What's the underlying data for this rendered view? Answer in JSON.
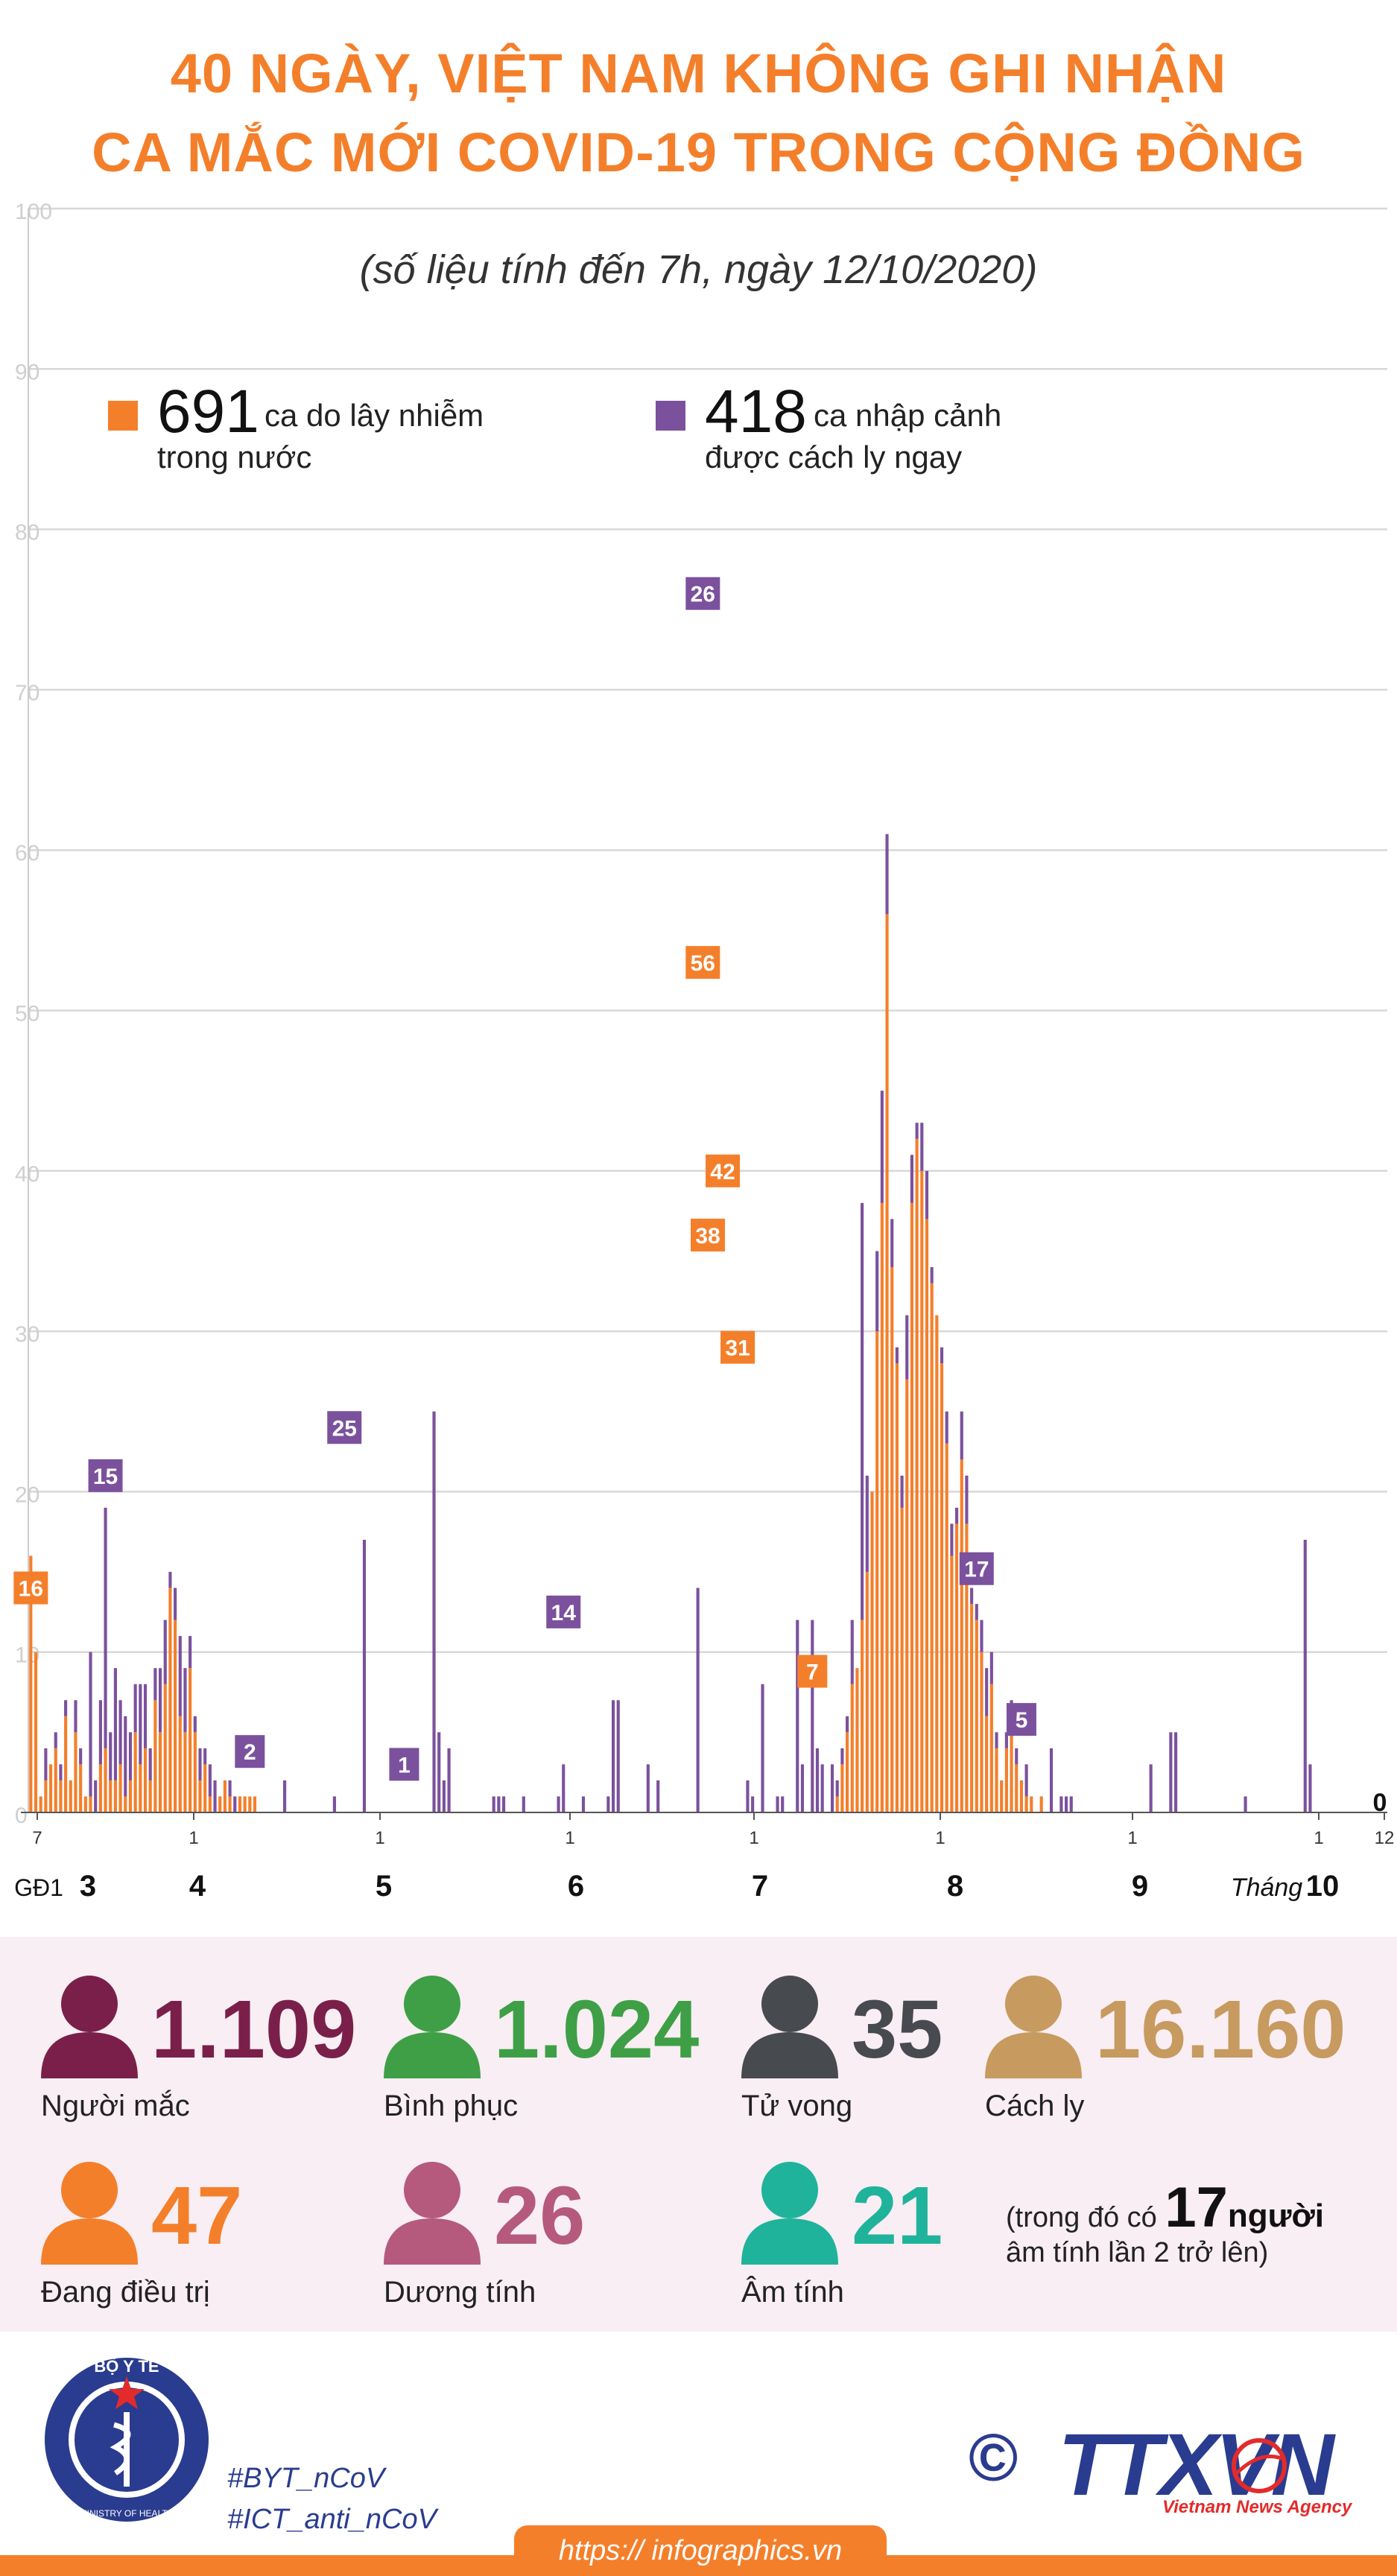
{
  "header": {
    "title_line1": "40 NGÀY, VIỆT NAM KHÔNG GHI NHẬN",
    "title_line2": "CA MẮC MỚI COVID-19 TRONG CỘNG ĐỒNG",
    "subtitle": "(số liệu tính đến 7h, ngày 12/10/2020)"
  },
  "legend": {
    "domestic": {
      "number": "691",
      "text1": "ca do lây nhiễm",
      "text2": "trong nước",
      "color": "#f47f2b"
    },
    "imported": {
      "number": "418",
      "text1": "ca nhập cảnh",
      "text2": "được cách ly ngay",
      "color": "#7b519d"
    }
  },
  "chart_data": {
    "type": "bar",
    "stacked": true,
    "grid": true,
    "ylim": [
      0,
      100
    ],
    "yticks": [
      "0",
      "10",
      "20",
      "30",
      "40",
      "50",
      "60",
      "70",
      "80",
      "90",
      "100"
    ],
    "series": [
      {
        "name": "ca do lây nhiễm trong nước",
        "color": "#f47f2b"
      },
      {
        "name": "ca nhập cảnh được cách ly ngay",
        "color": "#7b519d"
      }
    ],
    "x_day_ticks": [
      "7",
      "1",
      "1",
      "1",
      "1",
      "1",
      "1",
      "1",
      "12"
    ],
    "month_labels": [
      "GĐ1",
      "3",
      "4",
      "5",
      "6",
      "7",
      "8",
      "9",
      "Tháng",
      "10"
    ],
    "callouts": [
      "16",
      "15",
      "2",
      "25",
      "1",
      "14",
      "26",
      "56",
      "38",
      "42",
      "31",
      "7",
      "17",
      "5",
      "0"
    ],
    "domestic": [
      16,
      10,
      1,
      2,
      3,
      4,
      2,
      6,
      2,
      5,
      3,
      1,
      1,
      0,
      3,
      4,
      2,
      2,
      3,
      1,
      2,
      5,
      3,
      4,
      2,
      7,
      5,
      8,
      14,
      12,
      6,
      5,
      9,
      5,
      2,
      3,
      1,
      0,
      1,
      2,
      1,
      0,
      1,
      1,
      1,
      1,
      0,
      0,
      0,
      0,
      0,
      0,
      0,
      0,
      0,
      0,
      0,
      0,
      0,
      0,
      0,
      0,
      0,
      0,
      0,
      0,
      0,
      0,
      0,
      0,
      0,
      0,
      0,
      0,
      0,
      0,
      0,
      0,
      0,
      0,
      0,
      0,
      0,
      0,
      0,
      0,
      0,
      0,
      0,
      0,
      0,
      0,
      0,
      0,
      0,
      0,
      0,
      0,
      0,
      0,
      0,
      0,
      0,
      0,
      0,
      0,
      0,
      0,
      0,
      0,
      0,
      0,
      0,
      0,
      0,
      0,
      0,
      0,
      0,
      0,
      0,
      0,
      0,
      0,
      0,
      0,
      0,
      0,
      0,
      0,
      0,
      0,
      0,
      0,
      0,
      0,
      0,
      0,
      0,
      0,
      0,
      0,
      0,
      0,
      0,
      0,
      0,
      0,
      0,
      0,
      0,
      0,
      0,
      0,
      0,
      0,
      0,
      0,
      0,
      0,
      0,
      0,
      1,
      3,
      5,
      8,
      9,
      12,
      15,
      20,
      30,
      38,
      56,
      34,
      28,
      19,
      27,
      38,
      42,
      40,
      37,
      33,
      31,
      28,
      23,
      16,
      18,
      22,
      18,
      13,
      12,
      10,
      6,
      8,
      4,
      2,
      4,
      6,
      3,
      2,
      1,
      1,
      0,
      1,
      0,
      0,
      0,
      0,
      0,
      0,
      0,
      0,
      0,
      0,
      0,
      0,
      0,
      0,
      0,
      0,
      0,
      0,
      0,
      0,
      0,
      0,
      0,
      0,
      0,
      0,
      0,
      0,
      0,
      0,
      0,
      0,
      0,
      0,
      0,
      0,
      0,
      0,
      0,
      0,
      0,
      0,
      0,
      0,
      0,
      0,
      0,
      0,
      0,
      0,
      0,
      0,
      0,
      0,
      0,
      0,
      0,
      0,
      0,
      0,
      0,
      0,
      0,
      0,
      0,
      0,
      0,
      0,
      0
    ],
    "imported": [
      0,
      0,
      0,
      2,
      0,
      1,
      1,
      1,
      0,
      2,
      1,
      0,
      9,
      2,
      4,
      15,
      3,
      7,
      4,
      5,
      3,
      3,
      5,
      4,
      2,
      2,
      4,
      4,
      1,
      2,
      5,
      4,
      2,
      1,
      2,
      1,
      2,
      2,
      0,
      0,
      1,
      1,
      0,
      0,
      0,
      0,
      0,
      0,
      0,
      0,
      0,
      2,
      0,
      0,
      0,
      0,
      0,
      0,
      0,
      0,
      0,
      1,
      0,
      0,
      0,
      0,
      0,
      17,
      0,
      0,
      0,
      0,
      0,
      0,
      0,
      0,
      0,
      0,
      0,
      0,
      0,
      25,
      5,
      2,
      4,
      0,
      0,
      0,
      0,
      0,
      0,
      0,
      0,
      1,
      1,
      1,
      0,
      0,
      0,
      1,
      0,
      0,
      0,
      0,
      0,
      0,
      1,
      3,
      0,
      0,
      0,
      1,
      0,
      0,
      0,
      0,
      1,
      7,
      7,
      0,
      0,
      0,
      0,
      0,
      3,
      0,
      2,
      0,
      0,
      0,
      0,
      0,
      0,
      0,
      14,
      0,
      0,
      0,
      0,
      0,
      0,
      0,
      0,
      0,
      2,
      1,
      0,
      8,
      0,
      0,
      1,
      1,
      0,
      0,
      12,
      3,
      0,
      12,
      4,
      3,
      0,
      3,
      1,
      1,
      1,
      4,
      0,
      26,
      6,
      0,
      5,
      7,
      5,
      3,
      1,
      2,
      4,
      3,
      1,
      3,
      3,
      1,
      0,
      1,
      2,
      2,
      1,
      3,
      3,
      1,
      1,
      2,
      3,
      2,
      1,
      0,
      1,
      1,
      1,
      0,
      2,
      0,
      0,
      0,
      0,
      4,
      0,
      1,
      1,
      1,
      0,
      0,
      0,
      0,
      0,
      0,
      0,
      0,
      0,
      0,
      0,
      0,
      0,
      0,
      0,
      3,
      0,
      0,
      0,
      5,
      5,
      0,
      0,
      0,
      0,
      0,
      0,
      0,
      0,
      0,
      0,
      0,
      0,
      0,
      1,
      0,
      0,
      0,
      0,
      0,
      0,
      0,
      0,
      0,
      0,
      0,
      17,
      3,
      0,
      0,
      0,
      0,
      0,
      0,
      0,
      0,
      0,
      0,
      0,
      0,
      0,
      0,
      0,
      0,
      0,
      0
    ]
  },
  "stats": {
    "infected": {
      "value": "1.109",
      "label": "Người mắc",
      "color": "#7a1f4a"
    },
    "recovered": {
      "value": "1.024",
      "label": "Bình phục",
      "color": "#3f9f46"
    },
    "deaths": {
      "value": "35",
      "label": "Tử vong",
      "color": "#474a4f"
    },
    "quarantine": {
      "value": "16.160",
      "label": "Cách ly",
      "color": "#c79a5f"
    },
    "treating": {
      "value": "47",
      "label": "Đang điều trị",
      "color": "#f47f2b"
    },
    "positive": {
      "value": "26",
      "label": "Dương tính",
      "color": "#b55a7c"
    },
    "negative": {
      "value": "21",
      "label": "Âm tính",
      "color": "#20b39b"
    },
    "note": {
      "text1": "(trong đó có",
      "number": "17",
      "word": "người",
      "text2": "âm tính lần 2 trở lên)"
    }
  },
  "footer": {
    "ministry_text": "BỘ Y TẾ",
    "ministry_en": "MINISTRY OF HEALTH",
    "hashtag1": "#BYT_nCoV",
    "hashtag2": "#ICT_anti_nCoV",
    "copyright": "©",
    "brand": "TTXVN",
    "brand_sub": "Vietnam News Agency",
    "url": "https:// infographics.vn"
  }
}
